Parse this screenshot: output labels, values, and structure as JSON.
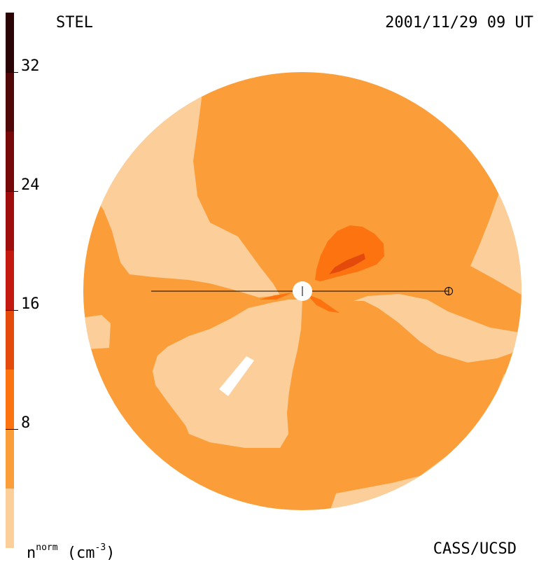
{
  "header": {
    "instrument": "STEL",
    "timestamp": "2001/11/29 09 UT"
  },
  "footer": {
    "credit": "CASS/UCSD"
  },
  "legend": {
    "quantity": "n",
    "quantity_superscript": "norm",
    "unit_open": " (cm",
    "unit_superscript": "-3",
    "unit_close": ")",
    "ticks": [
      {
        "value": 32,
        "label": "32"
      },
      {
        "value": 24,
        "label": "24"
      },
      {
        "value": 16,
        "label": "16"
      },
      {
        "value": 8,
        "label": "8"
      }
    ],
    "range": [
      0,
      36
    ],
    "levels": [
      {
        "min": 0,
        "max": 4,
        "color": "#fcce9a"
      },
      {
        "min": 4,
        "max": 8,
        "color": "#fb9e3a"
      },
      {
        "min": 8,
        "max": 12,
        "color": "#fd7310"
      },
      {
        "min": 12,
        "max": 16,
        "color": "#e34a0c"
      },
      {
        "min": 16,
        "max": 20,
        "color": "#c3190e"
      },
      {
        "min": 20,
        "max": 24,
        "color": "#9e0c0c"
      },
      {
        "min": 24,
        "max": 28,
        "color": "#760808"
      },
      {
        "min": 28,
        "max": 32,
        "color": "#4f0707"
      },
      {
        "min": 32,
        "max": 36,
        "color": "#2a0405"
      }
    ]
  },
  "colors": {
    "background": "#ffffff",
    "low_density": "#fcce9a",
    "mid_density": "#fb9e3a",
    "high_density": "#fd7310",
    "peak_density": "#e34a0c",
    "sun_marker": "#ffffff",
    "earth_line": "#000000"
  },
  "markers": {
    "sun": "sun-marker",
    "earth": "earth-marker-icon"
  }
}
